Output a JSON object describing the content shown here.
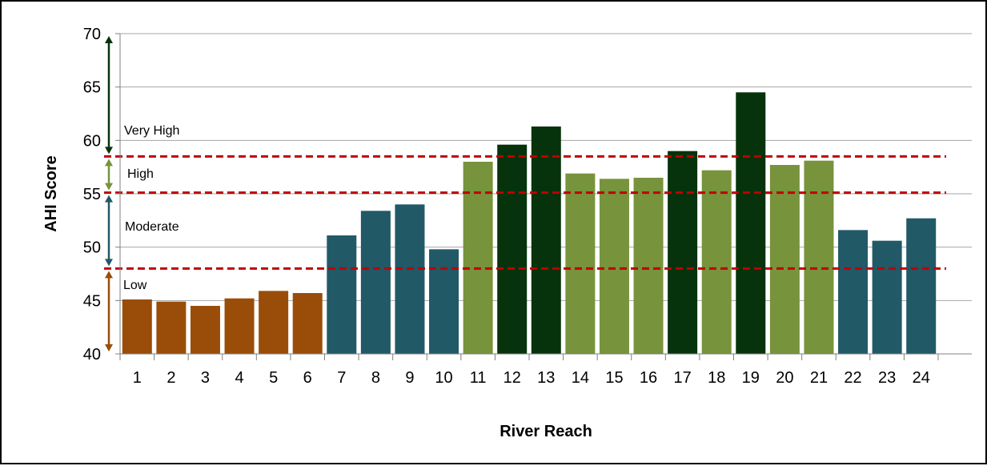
{
  "chart_data": {
    "type": "bar",
    "title": "",
    "xlabel": "River Reach",
    "ylabel": "AHI Score",
    "ylim": [
      40,
      70
    ],
    "yticks": [
      40,
      45,
      50,
      55,
      60,
      65,
      70
    ],
    "grid": true,
    "categories": [
      "1",
      "2",
      "3",
      "4",
      "5",
      "6",
      "7",
      "8",
      "9",
      "10",
      "11",
      "12",
      "13",
      "14",
      "15",
      "16",
      "17",
      "18",
      "19",
      "20",
      "21",
      "22",
      "23",
      "24"
    ],
    "values": [
      45.1,
      44.9,
      44.5,
      45.2,
      45.9,
      45.7,
      51.1,
      53.4,
      54.0,
      49.8,
      58.0,
      59.6,
      61.3,
      56.9,
      56.4,
      56.5,
      59.0,
      57.2,
      64.5,
      57.7,
      58.1,
      51.6,
      50.6,
      52.7
    ],
    "bar_classes": [
      "Low",
      "Low",
      "Low",
      "Low",
      "Low",
      "Low",
      "Moderate",
      "Moderate",
      "Moderate",
      "Moderate",
      "High",
      "Very High",
      "Very High",
      "High",
      "High",
      "High",
      "Very High",
      "High",
      "Very High",
      "High",
      "High",
      "Moderate",
      "Moderate",
      "Moderate"
    ],
    "thresholds": [
      48,
      55.1,
      58.5
    ],
    "bands": [
      {
        "name": "Low",
        "from": 40,
        "to": 48,
        "color": "#9a4d09"
      },
      {
        "name": "Moderate",
        "from": 48,
        "to": 55.1,
        "color": "#215967"
      },
      {
        "name": "High",
        "from": 55.1,
        "to": 58.5,
        "color": "#77933c"
      },
      {
        "name": "Very High",
        "from": 58.5,
        "to": 70,
        "color": "#06330c"
      }
    ],
    "colors": {
      "Low": "#9a4d09",
      "Moderate": "#215967",
      "High": "#77933c",
      "Very High": "#06330c",
      "threshold_line": "#c00000",
      "grid": "#a6a6a6"
    }
  }
}
